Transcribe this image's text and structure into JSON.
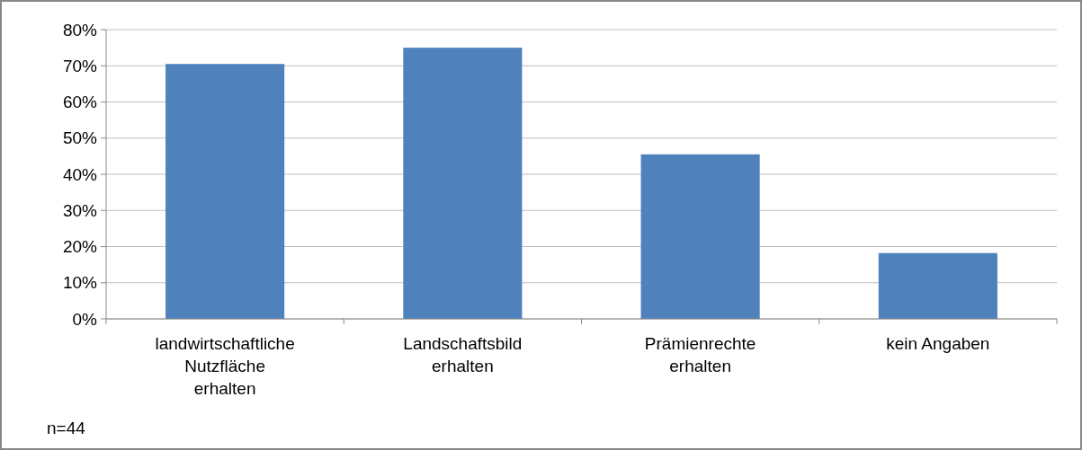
{
  "chart_data": {
    "type": "bar",
    "categories": [
      "landwirtschaftliche Nutzfläche erhalten",
      "Landschaftsbild erhalten",
      "Prämienrechte erhalten",
      "kein Angaben"
    ],
    "values": [
      70.5,
      75,
      45.5,
      18.2
    ],
    "color": "#4f81bd",
    "ylim": [
      0,
      80
    ],
    "yticks": [
      {
        "value": 0,
        "label": "0%"
      },
      {
        "value": 10,
        "label": "10%"
      },
      {
        "value": 20,
        "label": "20%"
      },
      {
        "value": 30,
        "label": "30%"
      },
      {
        "value": 40,
        "label": "40%"
      },
      {
        "value": 50,
        "label": "50%"
      },
      {
        "value": 60,
        "label": "60%"
      },
      {
        "value": 70,
        "label": "70%"
      },
      {
        "value": 80,
        "label": "80%"
      }
    ],
    "grid": "y",
    "annotations": [
      "n=44"
    ]
  }
}
